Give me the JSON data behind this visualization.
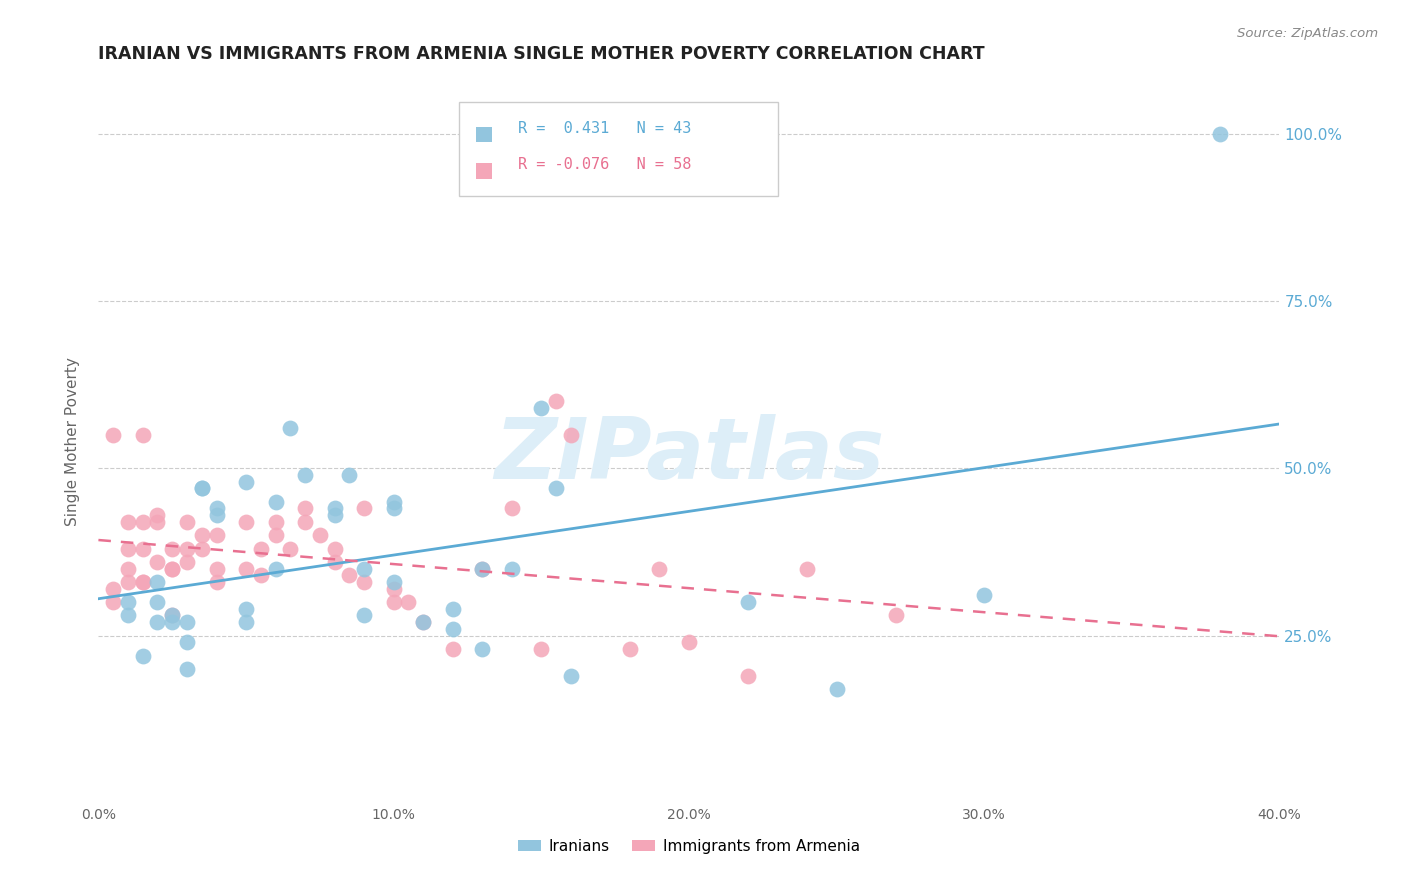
{
  "title": "IRANIAN VS IMMIGRANTS FROM ARMENIA SINGLE MOTHER POVERTY CORRELATION CHART",
  "source": "Source: ZipAtlas.com",
  "ylabel": "Single Mother Poverty",
  "xlim": [
    0.0,
    0.4
  ],
  "ylim": [
    0.0,
    1.08
  ],
  "iranian_R": 0.431,
  "iranian_N": 43,
  "armenia_R": -0.076,
  "armenia_N": 58,
  "blue_color": "#92c5de",
  "pink_color": "#f4a6b8",
  "blue_line_color": "#5baad4",
  "pink_line_color": "#e87090",
  "watermark_color": "#ddeef8",
  "iranian_x": [
    0.01,
    0.01,
    0.015,
    0.02,
    0.02,
    0.02,
    0.025,
    0.025,
    0.03,
    0.03,
    0.03,
    0.035,
    0.035,
    0.04,
    0.04,
    0.05,
    0.05,
    0.05,
    0.06,
    0.06,
    0.065,
    0.07,
    0.08,
    0.08,
    0.085,
    0.09,
    0.09,
    0.1,
    0.1,
    0.1,
    0.11,
    0.12,
    0.12,
    0.13,
    0.13,
    0.14,
    0.15,
    0.155,
    0.16,
    0.22,
    0.25,
    0.3,
    0.38
  ],
  "iranian_y": [
    0.28,
    0.3,
    0.22,
    0.33,
    0.3,
    0.27,
    0.27,
    0.28,
    0.27,
    0.24,
    0.2,
    0.47,
    0.47,
    0.44,
    0.43,
    0.27,
    0.29,
    0.48,
    0.45,
    0.35,
    0.56,
    0.49,
    0.43,
    0.44,
    0.49,
    0.28,
    0.35,
    0.45,
    0.33,
    0.44,
    0.27,
    0.29,
    0.26,
    0.35,
    0.23,
    0.35,
    0.59,
    0.47,
    0.19,
    0.3,
    0.17,
    0.31,
    1.0
  ],
  "armenia_x": [
    0.005,
    0.005,
    0.005,
    0.01,
    0.01,
    0.01,
    0.01,
    0.015,
    0.015,
    0.015,
    0.015,
    0.015,
    0.02,
    0.02,
    0.02,
    0.025,
    0.025,
    0.025,
    0.025,
    0.03,
    0.03,
    0.03,
    0.035,
    0.035,
    0.04,
    0.04,
    0.04,
    0.05,
    0.05,
    0.055,
    0.055,
    0.06,
    0.06,
    0.065,
    0.07,
    0.07,
    0.075,
    0.08,
    0.08,
    0.085,
    0.09,
    0.09,
    0.1,
    0.1,
    0.105,
    0.11,
    0.12,
    0.13,
    0.14,
    0.15,
    0.155,
    0.16,
    0.18,
    0.19,
    0.2,
    0.22,
    0.24,
    0.27
  ],
  "armenia_y": [
    0.3,
    0.32,
    0.55,
    0.33,
    0.35,
    0.38,
    0.42,
    0.33,
    0.38,
    0.42,
    0.33,
    0.55,
    0.36,
    0.42,
    0.43,
    0.35,
    0.38,
    0.35,
    0.28,
    0.38,
    0.36,
    0.42,
    0.38,
    0.4,
    0.33,
    0.35,
    0.4,
    0.35,
    0.42,
    0.38,
    0.34,
    0.42,
    0.4,
    0.38,
    0.44,
    0.42,
    0.4,
    0.36,
    0.38,
    0.34,
    0.33,
    0.44,
    0.3,
    0.32,
    0.3,
    0.27,
    0.23,
    0.35,
    0.44,
    0.23,
    0.6,
    0.55,
    0.23,
    0.35,
    0.24,
    0.19,
    0.35,
    0.28
  ]
}
